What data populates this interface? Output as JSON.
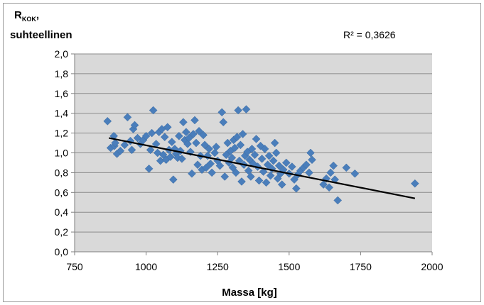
{
  "chart_data": {
    "type": "scatter",
    "title": "",
    "ylabel_main": "R",
    "ylabel_sub": "KOK",
    "ylabel_suffix": ",",
    "ylabel_line2": "suhteellinen",
    "xlabel": "Massa [kg]",
    "r2_label": "R² = 0,3626",
    "xlim": [
      750,
      2000
    ],
    "ylim": [
      0.0,
      2.0
    ],
    "x_ticks": [
      750,
      1000,
      1250,
      1500,
      1750,
      2000
    ],
    "y_ticks": [
      0.0,
      0.2,
      0.4,
      0.6,
      0.8,
      1.0,
      1.2,
      1.4,
      1.6,
      1.8,
      2.0
    ],
    "y_tick_labels": [
      "0,0",
      "0,2",
      "0,4",
      "0,6",
      "0,8",
      "1,0",
      "1,2",
      "1,4",
      "1,6",
      "1,8",
      "2,0"
    ],
    "grid": true,
    "marker_color": "#4a7ebb",
    "trendline_color": "#000000",
    "plot_background": "#d9d9d9",
    "trendline": [
      [
        870,
        1.15
      ],
      [
        1940,
        0.54
      ]
    ],
    "points": [
      [
        865,
        1.32
      ],
      [
        876,
        1.05
      ],
      [
        887,
        1.17
      ],
      [
        889,
        1.07
      ],
      [
        892,
        1.1
      ],
      [
        898,
        0.99
      ],
      [
        910,
        1.02
      ],
      [
        925,
        1.08
      ],
      [
        935,
        1.36
      ],
      [
        945,
        1.12
      ],
      [
        950,
        1.03
      ],
      [
        955,
        1.24
      ],
      [
        960,
        1.28
      ],
      [
        970,
        1.15
      ],
      [
        980,
        1.09
      ],
      [
        990,
        1.13
      ],
      [
        1000,
        1.17
      ],
      [
        1010,
        0.84
      ],
      [
        1015,
        1.03
      ],
      [
        1020,
        1.2
      ],
      [
        1025,
        1.43
      ],
      [
        1035,
        1.09
      ],
      [
        1040,
        1.0
      ],
      [
        1045,
        1.21
      ],
      [
        1050,
        0.92
      ],
      [
        1055,
        1.24
      ],
      [
        1060,
        0.98
      ],
      [
        1065,
        1.16
      ],
      [
        1070,
        0.93
      ],
      [
        1075,
        1.26
      ],
      [
        1080,
        1.03
      ],
      [
        1085,
        0.96
      ],
      [
        1090,
        1.11
      ],
      [
        1095,
        0.73
      ],
      [
        1100,
        1.04
      ],
      [
        1105,
        0.99
      ],
      [
        1110,
        0.95
      ],
      [
        1115,
        1.17
      ],
      [
        1120,
        1.02
      ],
      [
        1125,
        0.94
      ],
      [
        1130,
        1.31
      ],
      [
        1135,
        1.13
      ],
      [
        1140,
        1.21
      ],
      [
        1145,
        1.09
      ],
      [
        1150,
        1.15
      ],
      [
        1155,
        1.01
      ],
      [
        1160,
        0.79
      ],
      [
        1165,
        1.19
      ],
      [
        1170,
        1.33
      ],
      [
        1175,
        1.1
      ],
      [
        1180,
        0.88
      ],
      [
        1185,
        1.22
      ],
      [
        1190,
        0.97
      ],
      [
        1195,
        0.83
      ],
      [
        1200,
        1.18
      ],
      [
        1205,
        1.08
      ],
      [
        1210,
        0.85
      ],
      [
        1215,
        0.97
      ],
      [
        1220,
        1.04
      ],
      [
        1225,
        0.89
      ],
      [
        1230,
        0.8
      ],
      [
        1240,
        1.0
      ],
      [
        1245,
        1.06
      ],
      [
        1250,
        0.92
      ],
      [
        1258,
        0.87
      ],
      [
        1265,
        1.41
      ],
      [
        1270,
        1.31
      ],
      [
        1275,
        0.76
      ],
      [
        1280,
        0.98
      ],
      [
        1285,
        1.1
      ],
      [
        1290,
        0.9
      ],
      [
        1295,
        1.02
      ],
      [
        1300,
        0.95
      ],
      [
        1303,
        0.85
      ],
      [
        1306,
        1.13
      ],
      [
        1310,
        1.05
      ],
      [
        1314,
        0.8
      ],
      [
        1318,
        1.16
      ],
      [
        1322,
        1.43
      ],
      [
        1326,
        0.92
      ],
      [
        1330,
        1.08
      ],
      [
        1334,
        0.71
      ],
      [
        1338,
        1.19
      ],
      [
        1342,
        0.88
      ],
      [
        1346,
        0.97
      ],
      [
        1350,
        1.44
      ],
      [
        1354,
        1.01
      ],
      [
        1358,
        0.82
      ],
      [
        1362,
        0.93
      ],
      [
        1366,
        0.76
      ],
      [
        1370,
        1.04
      ],
      [
        1375,
        0.89
      ],
      [
        1380,
        0.98
      ],
      [
        1385,
        1.14
      ],
      [
        1390,
        0.86
      ],
      [
        1395,
        0.72
      ],
      [
        1400,
        1.07
      ],
      [
        1405,
        0.94
      ],
      [
        1410,
        0.81
      ],
      [
        1415,
        1.04
      ],
      [
        1420,
        0.7
      ],
      [
        1425,
        0.88
      ],
      [
        1430,
        0.97
      ],
      [
        1435,
        0.77
      ],
      [
        1440,
        0.84
      ],
      [
        1445,
        0.92
      ],
      [
        1450,
        1.1
      ],
      [
        1455,
        1.0
      ],
      [
        1460,
        0.74
      ],
      [
        1465,
        0.87
      ],
      [
        1470,
        0.79
      ],
      [
        1475,
        0.68
      ],
      [
        1480,
        0.83
      ],
      [
        1490,
        0.9
      ],
      [
        1500,
        0.79
      ],
      [
        1510,
        0.86
      ],
      [
        1518,
        0.73
      ],
      [
        1525,
        0.64
      ],
      [
        1530,
        0.78
      ],
      [
        1540,
        0.82
      ],
      [
        1550,
        0.85
      ],
      [
        1560,
        0.88
      ],
      [
        1570,
        0.8
      ],
      [
        1575,
        1.0
      ],
      [
        1580,
        0.93
      ],
      [
        1620,
        0.68
      ],
      [
        1630,
        0.74
      ],
      [
        1640,
        0.65
      ],
      [
        1645,
        0.8
      ],
      [
        1655,
        0.87
      ],
      [
        1660,
        0.73
      ],
      [
        1670,
        0.52
      ],
      [
        1700,
        0.85
      ],
      [
        1730,
        0.79
      ],
      [
        1940,
        0.69
      ]
    ]
  }
}
